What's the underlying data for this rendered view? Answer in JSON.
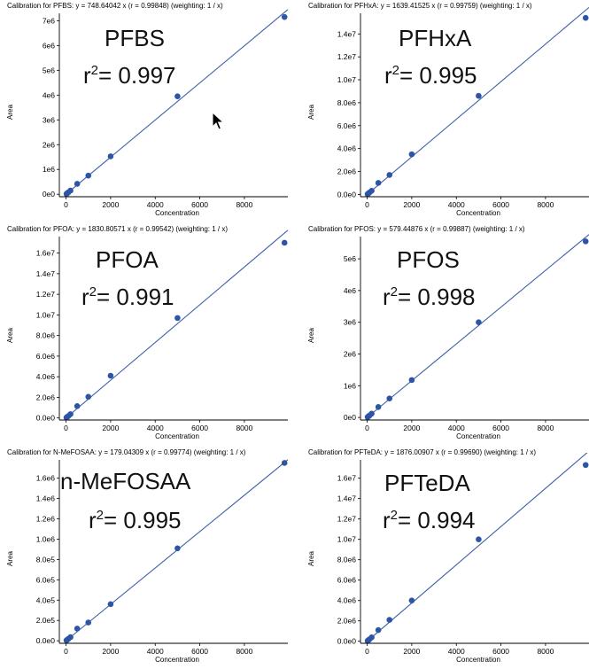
{
  "chart_data": [
    {
      "type": "scatter",
      "title": "Calibration for PFBS: y = 748.64042 x (r = 0.99848)  (weighting: 1 / x)",
      "label": "PFBS",
      "r2_text": "0.997",
      "xlabel": "Concentration",
      "ylabel": "Area",
      "xlim": [
        -300,
        9950
      ],
      "ylim": [
        -100000,
        7300000
      ],
      "x_ticks": [
        0,
        2000,
        4000,
        6000,
        8000
      ],
      "x_tick_labels": [
        "0",
        "2000",
        "4000",
        "6000",
        "8000"
      ],
      "y_ticks": [
        0,
        1000000,
        2000000,
        3000000,
        4000000,
        5000000,
        6000000,
        7000000
      ],
      "y_tick_labels": [
        "0e0",
        "1e6",
        "2e6",
        "3e6",
        "4e6",
        "5e6",
        "6e6",
        "7e6"
      ],
      "fit_slope": 748.64042,
      "x": [
        20,
        50,
        100,
        200,
        500,
        1000,
        2000,
        5000,
        9800
      ],
      "y": [
        15000,
        37000,
        75000,
        150000,
        420000,
        750000,
        1530000,
        3950000,
        7150000
      ]
    },
    {
      "type": "scatter",
      "title": "Calibration for PFHxA: y = 1639.41525 x (r = 0.99759)  (weighting: 1 / x)",
      "label": "PFHxA",
      "r2_text": "0.995",
      "xlabel": "Concentration",
      "ylabel": "Area",
      "xlim": [
        -300,
        9950
      ],
      "ylim": [
        -200000,
        15800000
      ],
      "x_ticks": [
        0,
        2000,
        4000,
        6000,
        8000
      ],
      "x_tick_labels": [
        "0",
        "2000",
        "4000",
        "6000",
        "8000"
      ],
      "y_ticks": [
        0,
        2000000,
        4000000,
        6000000,
        8000000,
        10000000,
        12000000,
        14000000
      ],
      "y_tick_labels": [
        "0.0e0",
        "2.0e6",
        "4.0e6",
        "6.0e6",
        "8.0e6",
        "1.0e7",
        "1.2e7",
        "1.4e7"
      ],
      "fit_slope": 1639.41525,
      "x": [
        20,
        50,
        100,
        200,
        500,
        1000,
        2000,
        5000,
        9800
      ],
      "y": [
        30000,
        80000,
        160000,
        320000,
        1000000,
        1700000,
        3500000,
        8600000,
        15400000
      ]
    },
    {
      "type": "scatter",
      "title": "Calibration for PFOA: y = 1830.80571 x (r = 0.99542)  (weighting: 1 / x)",
      "label": "PFOA",
      "r2_text": "0.991",
      "xlabel": "Concentration",
      "ylabel": "Area",
      "xlim": [
        -300,
        9950
      ],
      "ylim": [
        -200000,
        17600000
      ],
      "x_ticks": [
        0,
        2000,
        4000,
        6000,
        8000
      ],
      "x_tick_labels": [
        "0",
        "2000",
        "4000",
        "6000",
        "8000"
      ],
      "y_ticks": [
        0,
        2000000,
        4000000,
        6000000,
        8000000,
        10000000,
        12000000,
        14000000,
        16000000
      ],
      "y_tick_labels": [
        "0.0e0",
        "2.0e6",
        "4.0e6",
        "6.0e6",
        "8.0e6",
        "1.0e7",
        "1.2e7",
        "1.4e7",
        "1.6e7"
      ],
      "fit_slope": 1830.80571,
      "x": [
        20,
        50,
        100,
        200,
        500,
        1000,
        2000,
        5000,
        9800
      ],
      "y": [
        40000,
        90000,
        180000,
        370000,
        1150000,
        2050000,
        4100000,
        9700000,
        17000000
      ]
    },
    {
      "type": "scatter",
      "title": "Calibration for PFOS: y = 579.44876 x (r = 0.99887)  (weighting: 1 / x)",
      "label": "PFOS",
      "r2_text": "0.998",
      "xlabel": "Concentration",
      "ylabel": "Area",
      "xlim": [
        -300,
        9950
      ],
      "ylim": [
        -80000,
        5700000
      ],
      "x_ticks": [
        0,
        2000,
        4000,
        6000,
        8000
      ],
      "x_tick_labels": [
        "0",
        "2000",
        "4000",
        "6000",
        "8000"
      ],
      "y_ticks": [
        0,
        1000000,
        2000000,
        3000000,
        4000000,
        5000000
      ],
      "y_tick_labels": [
        "0e0",
        "1e6",
        "2e6",
        "3e6",
        "4e6",
        "5e6"
      ],
      "fit_slope": 579.44876,
      "x": [
        20,
        50,
        100,
        200,
        500,
        1000,
        2000,
        5000,
        9800
      ],
      "y": [
        12000,
        30000,
        60000,
        120000,
        330000,
        600000,
        1180000,
        3000000,
        5550000
      ]
    },
    {
      "type": "scatter",
      "title": "Calibration for N-MeFOSAA: y = 179.04309 x (r = 0.99774)  (weighting: 1 / x)",
      "label": "n-MeFOSAA",
      "r2_text": "0.995",
      "xlabel": "Concentration",
      "ylabel": "Area",
      "xlim": [
        -300,
        9950
      ],
      "ylim": [
        -25000,
        1780000
      ],
      "x_ticks": [
        0,
        2000,
        4000,
        6000,
        8000
      ],
      "x_tick_labels": [
        "0",
        "2000",
        "4000",
        "6000",
        "8000"
      ],
      "y_ticks": [
        0,
        200000,
        400000,
        600000,
        800000,
        1000000,
        1200000,
        1400000,
        1600000
      ],
      "y_tick_labels": [
        "0.0e0",
        "2.0e5",
        "4.0e5",
        "6.0e5",
        "8.0e5",
        "1.0e6",
        "1.2e6",
        "1.4e6",
        "1.6e6"
      ],
      "fit_slope": 179.04309,
      "x": [
        20,
        50,
        100,
        200,
        500,
        1000,
        2000,
        5000,
        9800
      ],
      "y": [
        4000,
        9000,
        18000,
        36000,
        120000,
        180000,
        360000,
        910000,
        1750000
      ]
    },
    {
      "type": "scatter",
      "title": "Calibration for PFTeDA: y = 1876.00907 x (r = 0.99690)  (weighting: 1 / x)",
      "label": "PFTeDA",
      "r2_text": "0.994",
      "xlabel": "Concentration",
      "ylabel": "Area",
      "xlim": [
        -300,
        9950
      ],
      "ylim": [
        -200000,
        17800000
      ],
      "x_ticks": [
        0,
        2000,
        4000,
        6000,
        8000
      ],
      "x_tick_labels": [
        "0",
        "2000",
        "4000",
        "6000",
        "8000"
      ],
      "y_ticks": [
        0,
        2000000,
        4000000,
        6000000,
        8000000,
        10000000,
        12000000,
        14000000,
        16000000
      ],
      "y_tick_labels": [
        "0.0e0",
        "2.0e6",
        "4.0e6",
        "6.0e6",
        "8.0e6",
        "1.0e7",
        "1.2e7",
        "1.4e7",
        "1.6e7"
      ],
      "fit_slope": 1876.00907,
      "x": [
        20,
        50,
        100,
        200,
        500,
        1000,
        2000,
        5000,
        9800
      ],
      "y": [
        40000,
        95000,
        190000,
        380000,
        1100000,
        2100000,
        4000000,
        10000000,
        17300000
      ]
    }
  ],
  "r2_prefix": "r",
  "r2_sup": "2",
  "r2_eq": "= ",
  "colors": {
    "point": "#2d55a6",
    "line": "#3f5fa8",
    "axis": "#000000"
  },
  "cursor_icon": "mouse-pointer-icon"
}
